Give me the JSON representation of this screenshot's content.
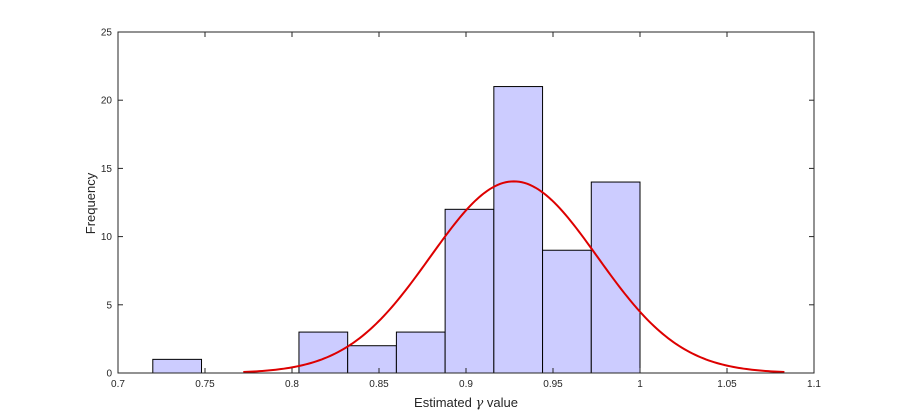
{
  "chart_data": {
    "type": "bar",
    "subtype": "histogram-with-fitted-normal-curve",
    "xlabel": "Estimated γ value",
    "xlabel_prefix": "Estimated ",
    "xlabel_symbol": "γ",
    "xlabel_suffix": " value",
    "ylabel": "Frequency",
    "xlim": [
      0.7,
      1.1
    ],
    "ylim": [
      0,
      25
    ],
    "xticks": [
      "0.7",
      "0.75",
      "0.8",
      "0.85",
      "0.9",
      "0.95",
      "1",
      "1.05",
      "1.1"
    ],
    "yticks": [
      "0",
      "5",
      "10",
      "15",
      "20",
      "25"
    ],
    "grid": false,
    "bins": [
      {
        "x0": 0.72,
        "x1": 0.748,
        "count": 1
      },
      {
        "x0": 0.748,
        "x1": 0.776,
        "count": 0
      },
      {
        "x0": 0.776,
        "x1": 0.804,
        "count": 0
      },
      {
        "x0": 0.804,
        "x1": 0.832,
        "count": 3
      },
      {
        "x0": 0.832,
        "x1": 0.86,
        "count": 2
      },
      {
        "x0": 0.86,
        "x1": 0.888,
        "count": 3
      },
      {
        "x0": 0.888,
        "x1": 0.916,
        "count": 12
      },
      {
        "x0": 0.916,
        "x1": 0.944,
        "count": 21
      },
      {
        "x0": 0.944,
        "x1": 0.972,
        "count": 9
      },
      {
        "x0": 0.972,
        "x1": 1.0,
        "count": 14
      }
    ],
    "fit_curve": {
      "type": "normal",
      "mean": 0.9275,
      "std": 0.048,
      "peak": 14.05,
      "x_range": [
        0.772,
        1.083
      ]
    },
    "colors": {
      "bar_fill": "#ccccff",
      "bar_edge": "#000000",
      "curve": "#dd0000",
      "axis": "#262626"
    }
  }
}
